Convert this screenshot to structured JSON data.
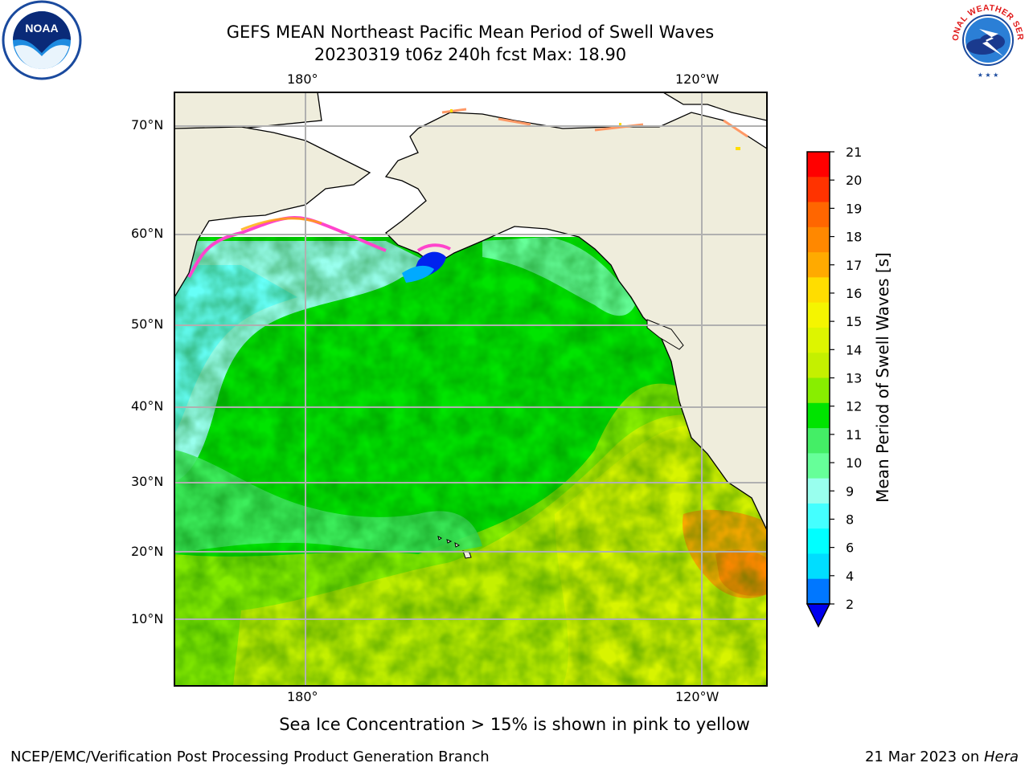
{
  "title": {
    "line1": "GEFS MEAN Northeast Pacific Mean Period of Swell Waves",
    "line2": "20230319 t06z 240h fcst   Max: 18.90"
  },
  "logos": {
    "left": "noaa-logo",
    "right": "nws-logo",
    "left_text": "NOAA",
    "right_text": "NATIONAL WEATHER SERVICE"
  },
  "map": {
    "lon_labels_top": [
      "180°",
      "120°W"
    ],
    "lon_labels_bottom": [
      "180°",
      "120°W"
    ],
    "lat_labels": [
      "70°N",
      "60°N",
      "50°N",
      "40°N",
      "30°N",
      "20°N",
      "10°N"
    ],
    "land_color": "#efeddc",
    "grid_color": "#b0b0b0"
  },
  "colorbar": {
    "label": "Mean Period of Swell Waves [s]",
    "ticks": [
      "21",
      "20",
      "19",
      "18",
      "17",
      "16",
      "15",
      "14",
      "13",
      "12",
      "11",
      "10",
      "9",
      "8",
      "6",
      "4",
      "2"
    ],
    "colors": [
      "#ff0000",
      "#ff3300",
      "#ff6600",
      "#ff8800",
      "#ffaa00",
      "#ffdd00",
      "#f5f500",
      "#ddf500",
      "#c4f000",
      "#88ee00",
      "#00e400",
      "#44ee66",
      "#66ff99",
      "#99ffee",
      "#44ffff",
      "#00ffff",
      "#00ddff",
      "#0077ff"
    ],
    "extend_color": "#0000ee"
  },
  "note": "Sea Ice Concentration > 15% is shown in pink to yellow",
  "footer": {
    "left": "NCEP/EMC/Verification Post Processing Product Generation Branch",
    "right_date": "21 Mar 2023 on ",
    "right_host": "Hera"
  }
}
